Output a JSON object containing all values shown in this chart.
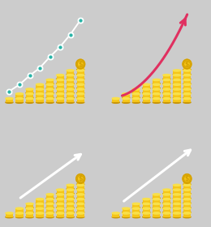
{
  "bg_tl": "#2ab5a8",
  "bg_tr": "#e8e8e8",
  "bg_bl": "#e8707a",
  "bg_br": "#2ab5a8",
  "coin_color": "#f5c518",
  "coin_edge": "#d4a000",
  "coin_top": "#f9e04a",
  "coin_shadow": "#c8960a",
  "line_color_tl": "#ffffff",
  "arrow_color_tr": "#e03060",
  "arrow_color_bl": "#ffffff",
  "arrow_color_br": "#ffffff",
  "heights": [
    1,
    2,
    3,
    4,
    5,
    6,
    7,
    8
  ],
  "n_bars": 8
}
